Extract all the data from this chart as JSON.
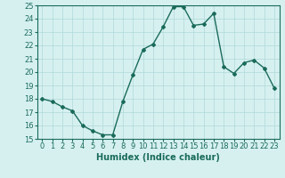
{
  "x": [
    0,
    1,
    2,
    3,
    4,
    5,
    6,
    7,
    8,
    9,
    10,
    11,
    12,
    13,
    14,
    15,
    16,
    17,
    18,
    19,
    20,
    21,
    22,
    23
  ],
  "y": [
    18.0,
    17.8,
    17.4,
    17.1,
    16.0,
    15.6,
    15.3,
    15.3,
    17.8,
    19.8,
    21.7,
    22.1,
    23.4,
    24.9,
    24.9,
    23.5,
    23.6,
    24.4,
    20.4,
    19.9,
    20.7,
    20.9,
    20.3,
    18.8
  ],
  "line_color": "#1a6b5a",
  "marker": "D",
  "marker_size": 2,
  "bg_color": "#d6f0f0",
  "grid_color": "#b0d8d8",
  "xlabel": "Humidex (Indice chaleur)",
  "xlim": [
    -0.5,
    23.5
  ],
  "ylim": [
    15,
    25
  ],
  "yticks": [
    15,
    16,
    17,
    18,
    19,
    20,
    21,
    22,
    23,
    24,
    25
  ],
  "xticks": [
    0,
    1,
    2,
    3,
    4,
    5,
    6,
    7,
    8,
    9,
    10,
    11,
    12,
    13,
    14,
    15,
    16,
    17,
    18,
    19,
    20,
    21,
    22,
    23
  ],
  "xlabel_fontsize": 7,
  "tick_fontsize": 6,
  "line_width": 1.0
}
